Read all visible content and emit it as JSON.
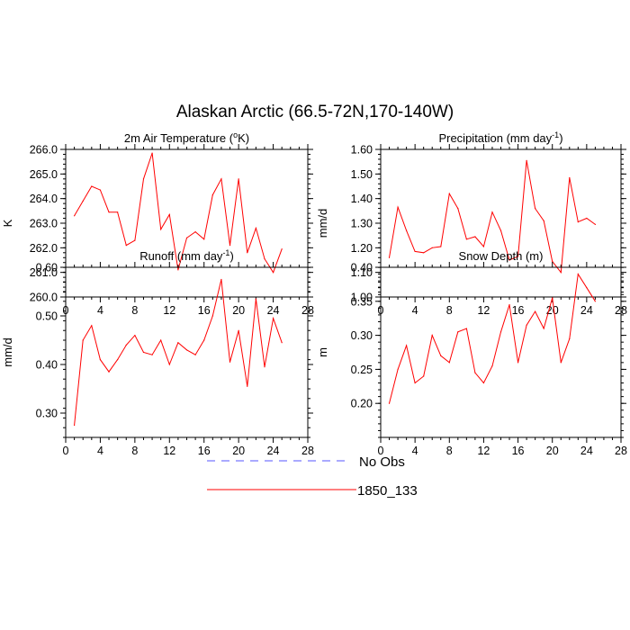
{
  "figure": {
    "title": "Alaskan Arctic (66.5-72N,170-140W)"
  },
  "legend": [
    {
      "label": "No Obs",
      "color": "#5555ff",
      "style": "dashed"
    },
    {
      "label": "1850_133",
      "color": "#ff0000",
      "style": "solid"
    }
  ],
  "chart_data": [
    {
      "type": "line",
      "title_main": "2m Air Temperature (",
      "title_sup": "o",
      "title_rest": "K)",
      "ylabel": "K",
      "xlim": [
        0,
        28
      ],
      "ylim": [
        260,
        266
      ],
      "xticks": [
        0,
        4,
        8,
        12,
        16,
        20,
        24,
        28
      ],
      "yticks": [
        260,
        261,
        262,
        263,
        264,
        265,
        266
      ],
      "ytick_labels": [
        "260.0",
        "261.0",
        "262.0",
        "263.0",
        "264.0",
        "265.0",
        "266.0"
      ],
      "x": [
        1,
        2,
        3,
        4,
        5,
        6,
        7,
        8,
        9,
        10,
        11,
        12,
        13,
        14,
        15,
        16,
        17,
        18,
        19,
        20,
        21,
        22,
        23,
        24,
        25
      ],
      "series": [
        {
          "name": "1850_133",
          "color": "#ff0000",
          "values": [
            263.3,
            263.9,
            264.5,
            264.35,
            263.45,
            263.45,
            262.1,
            262.3,
            264.8,
            265.85,
            262.75,
            263.35,
            261.1,
            262.4,
            262.65,
            262.35,
            264.15,
            264.8,
            262.1,
            264.8,
            261.8,
            262.8,
            261.55,
            261.0,
            261.95
          ]
        }
      ]
    },
    {
      "type": "line",
      "title_main": "Precipitation (mm day",
      "title_sup": "-1",
      "title_rest": ")",
      "ylabel": "mm/d",
      "xlim": [
        0,
        28
      ],
      "ylim": [
        1.0,
        1.6
      ],
      "xticks": [
        0,
        4,
        8,
        12,
        16,
        20,
        24,
        28
      ],
      "yticks": [
        1.0,
        1.1,
        1.2,
        1.3,
        1.4,
        1.5,
        1.6
      ],
      "ytick_labels": [
        "1.00",
        "1.10",
        "1.20",
        "1.30",
        "1.40",
        "1.50",
        "1.60"
      ],
      "x": [
        1,
        2,
        3,
        4,
        5,
        6,
        7,
        8,
        9,
        10,
        11,
        12,
        13,
        14,
        15,
        16,
        17,
        18,
        19,
        20,
        21,
        22,
        23,
        24,
        25
      ],
      "series": [
        {
          "name": "1850_133",
          "color": "#ff0000",
          "values": [
            1.16,
            1.365,
            1.27,
            1.185,
            1.18,
            1.2,
            1.205,
            1.42,
            1.36,
            1.235,
            1.245,
            1.205,
            1.345,
            1.27,
            1.15,
            1.165,
            1.555,
            1.36,
            1.31,
            1.145,
            1.1,
            1.485,
            1.305,
            1.32,
            1.295
          ]
        }
      ]
    },
    {
      "type": "line",
      "title_main": "Runoff (mm day",
      "title_sup": "-1",
      "title_rest": ")",
      "ylabel": "mm/d",
      "xlim": [
        0,
        28
      ],
      "ylim": [
        0.25,
        0.6
      ],
      "xticks": [
        0,
        4,
        8,
        12,
        16,
        20,
        24,
        28
      ],
      "yticks": [
        0.3,
        0.4,
        0.5,
        0.6
      ],
      "ytick_labels": [
        "0.30",
        "0.40",
        "0.50",
        "0.60"
      ],
      "x": [
        1,
        2,
        3,
        4,
        5,
        6,
        7,
        8,
        9,
        10,
        11,
        12,
        13,
        14,
        15,
        16,
        17,
        18,
        19,
        20,
        21,
        22,
        23,
        24,
        25
      ],
      "series": [
        {
          "name": "1850_133",
          "color": "#ff0000",
          "values": [
            0.275,
            0.45,
            0.48,
            0.41,
            0.385,
            0.41,
            0.44,
            0.46,
            0.425,
            0.42,
            0.45,
            0.4,
            0.445,
            0.43,
            0.42,
            0.45,
            0.5,
            0.575,
            0.405,
            0.47,
            0.355,
            0.535,
            0.395,
            0.495,
            0.445
          ]
        }
      ]
    },
    {
      "type": "line",
      "title_main": "Snow Depth (m)",
      "title_sup": "",
      "title_rest": "",
      "ylabel": "m",
      "xlim": [
        0,
        28
      ],
      "ylim": [
        0.15,
        0.4
      ],
      "xticks": [
        0,
        4,
        8,
        12,
        16,
        20,
        24,
        28
      ],
      "yticks": [
        0.2,
        0.25,
        0.3,
        0.35,
        0.4
      ],
      "ytick_labels": [
        "0.20",
        "0.25",
        "0.30",
        "0.35",
        "0.40"
      ],
      "x": [
        1,
        2,
        3,
        4,
        5,
        6,
        7,
        8,
        9,
        10,
        11,
        12,
        13,
        14,
        15,
        16,
        17,
        18,
        19,
        20,
        21,
        22,
        23,
        24,
        25
      ],
      "series": [
        {
          "name": "1850_133",
          "color": "#ff0000",
          "values": [
            0.2,
            0.25,
            0.285,
            0.23,
            0.24,
            0.3,
            0.27,
            0.26,
            0.305,
            0.31,
            0.245,
            0.23,
            0.255,
            0.305,
            0.345,
            0.26,
            0.315,
            0.335,
            0.31,
            0.355,
            0.26,
            0.295,
            0.39,
            0.37,
            0.35
          ]
        }
      ]
    }
  ]
}
